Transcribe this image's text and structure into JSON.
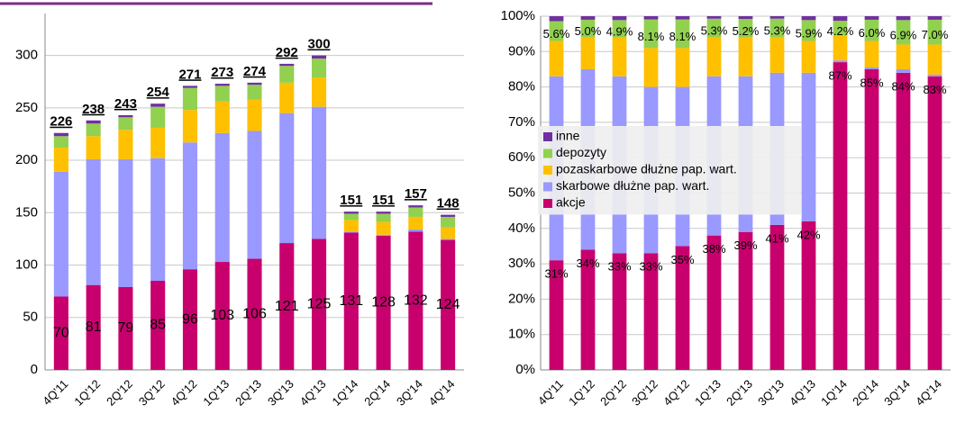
{
  "chart_data": [
    {
      "type": "bar",
      "stacked": true,
      "legend": "none",
      "grid": true,
      "categories": [
        "4Q'11",
        "1Q'12",
        "2Q'12",
        "3Q'12",
        "4Q'12",
        "1Q'13",
        "2Q'13",
        "3Q'13",
        "4Q'13",
        "1Q'14",
        "2Q'14",
        "3Q'14",
        "4Q'14"
      ],
      "series": [
        {
          "name": "akcje",
          "color": "#c8006e",
          "values": [
            70,
            81,
            79,
            85,
            96,
            103,
            106,
            121,
            125,
            131,
            128,
            132,
            124
          ]
        },
        {
          "name": "skarbowe dłużne pap. wart.",
          "color": "#9999ff",
          "values": [
            119,
            120,
            122,
            117,
            121,
            123,
            122,
            124,
            126,
            1,
            1,
            2,
            1
          ]
        },
        {
          "name": "pozaskarbowe dłużne pap. wart.",
          "color": "#ffc000",
          "values": [
            23,
            22,
            28,
            29,
            31,
            30,
            30,
            29,
            28,
            11,
            12,
            12,
            11
          ]
        },
        {
          "name": "depozyty",
          "color": "#92d050",
          "values": [
            11,
            12,
            12,
            20,
            21,
            15,
            14,
            16,
            18,
            6,
            8,
            9,
            10
          ]
        },
        {
          "name": "inne",
          "color": "#7030a0",
          "values": [
            3,
            3,
            2,
            3,
            2,
            2,
            2,
            2,
            3,
            2,
            2,
            2,
            2
          ]
        }
      ],
      "totals": [
        226,
        238,
        243,
        254,
        271,
        273,
        274,
        292,
        300,
        151,
        151,
        157,
        148
      ],
      "ylim": [
        0,
        340
      ],
      "yticks": [
        0,
        50,
        100,
        150,
        200,
        250,
        300
      ]
    },
    {
      "type": "bar",
      "stacked": true,
      "legend": "center left",
      "grid": true,
      "categories": [
        "4Q'11",
        "1Q'12",
        "2Q'12",
        "3Q'12",
        "4Q'12",
        "1Q'13",
        "2Q'13",
        "3Q'13",
        "4Q'13",
        "1Q'14",
        "2Q'14",
        "3Q'14",
        "4Q'14"
      ],
      "series": [
        {
          "name": "akcje",
          "color": "#c8006e",
          "values": [
            31,
            34,
            33,
            33,
            35,
            38,
            39,
            41,
            42,
            87,
            85,
            84,
            83
          ],
          "value_labels": [
            "31%",
            "34%",
            "33%",
            "33%",
            "35%",
            "38%",
            "39%",
            "41%",
            "42%",
            "87%",
            "85%",
            "84%",
            "83%"
          ]
        },
        {
          "name": "skarbowe dłużne pap. wart.",
          "color": "#9999ff",
          "values": [
            52,
            51,
            50,
            47,
            45,
            45,
            44,
            43,
            42,
            0.5,
            0.5,
            1,
            0.5
          ]
        },
        {
          "name": "pozaskarbowe dłużne pap. wart.",
          "color": "#ffc000",
          "values": [
            10,
            9,
            11,
            11,
            11,
            11,
            11,
            10,
            9,
            7,
            7.5,
            7,
            8.5
          ]
        },
        {
          "name": "depozyty",
          "color": "#92d050",
          "values": [
            5.6,
            5.0,
            4.9,
            8.1,
            8.1,
            5.3,
            5.2,
            5.3,
            5.9,
            4.2,
            6.0,
            6.9,
            7.0
          ],
          "value_labels": [
            "5.6%",
            "5.0%",
            "4.9%",
            "8.1%",
            "8.1%",
            "5.3%",
            "5.2%",
            "5.3%",
            "5.9%",
            "4.2%",
            "6.0%",
            "6.9%",
            "7.0%"
          ]
        },
        {
          "name": "inne",
          "color": "#7030a0",
          "values": [
            1.4,
            1,
            1.1,
            0.9,
            0.9,
            0.7,
            0.8,
            0.7,
            1.1,
            1.3,
            1.0,
            1.1,
            1.0
          ]
        }
      ],
      "ylim": [
        0,
        100
      ],
      "yticks": [
        {
          "value": 0,
          "label": "0%"
        },
        {
          "value": 10,
          "label": "10%"
        },
        {
          "value": 20,
          "label": "20%"
        },
        {
          "value": 30,
          "label": "30%"
        },
        {
          "value": 40,
          "label": "40%"
        },
        {
          "value": 50,
          "label": "50%"
        },
        {
          "value": 60,
          "label": "60%"
        },
        {
          "value": 70,
          "label": "70%"
        },
        {
          "value": 80,
          "label": "80%"
        },
        {
          "value": 90,
          "label": "90%"
        },
        {
          "value": 100,
          "label": "100%"
        }
      ]
    }
  ]
}
